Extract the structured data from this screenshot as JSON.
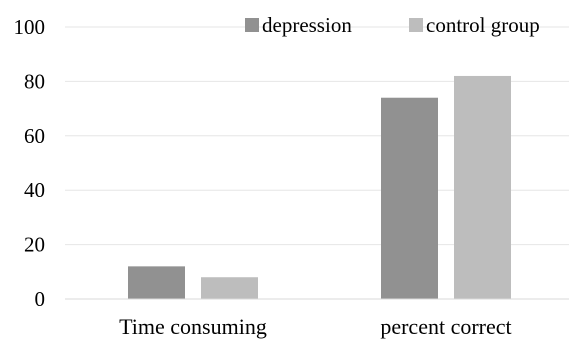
{
  "chart_data": {
    "type": "bar",
    "categories": [
      "Time consuming",
      "percent correct"
    ],
    "series": [
      {
        "name": "depression",
        "values": [
          12,
          74
        ],
        "color": "#919191"
      },
      {
        "name": "control group",
        "values": [
          8,
          82
        ],
        "color": "#bdbdbd"
      }
    ],
    "ylim": [
      0,
      100
    ],
    "yticks": [
      0,
      20,
      40,
      60,
      80,
      100
    ],
    "grid": true,
    "legend_position": "top-right",
    "title": "",
    "xlabel": "",
    "ylabel": ""
  }
}
